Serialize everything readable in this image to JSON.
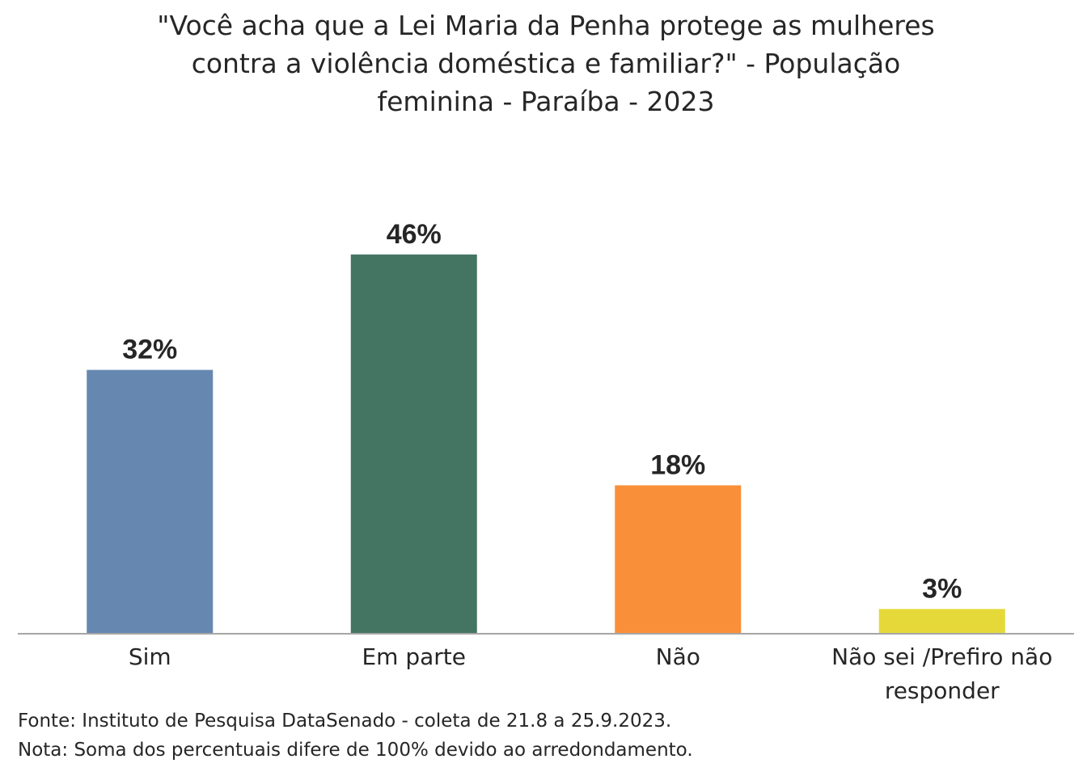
{
  "chart_data": {
    "type": "bar",
    "title_lines": [
      "\"Você acha que a Lei Maria da Penha protege as mulheres",
      "contra a violência doméstica e familiar?\" - População",
      "feminina - Paraíba - 2023"
    ],
    "categories": [
      [
        "Sim"
      ],
      [
        "Em parte"
      ],
      [
        "Não"
      ],
      [
        "Não sei /Prefiro não",
        "responder"
      ]
    ],
    "values": [
      32,
      46,
      18,
      3
    ],
    "value_labels": [
      "32%",
      "46%",
      "18%",
      "3%"
    ],
    "colors": [
      "#6688B0",
      "#447562",
      "#F99039",
      "#E5D93A"
    ],
    "ylim": [
      0,
      50
    ],
    "grid": false,
    "legend": "none"
  },
  "footer": {
    "source": "Fonte: Instituto de Pesquisa DataSenado - coleta de 21.8 a 25.9.2023.",
    "note": "Nota: Soma dos percentuais difere de 100% devido ao arredondamento."
  }
}
